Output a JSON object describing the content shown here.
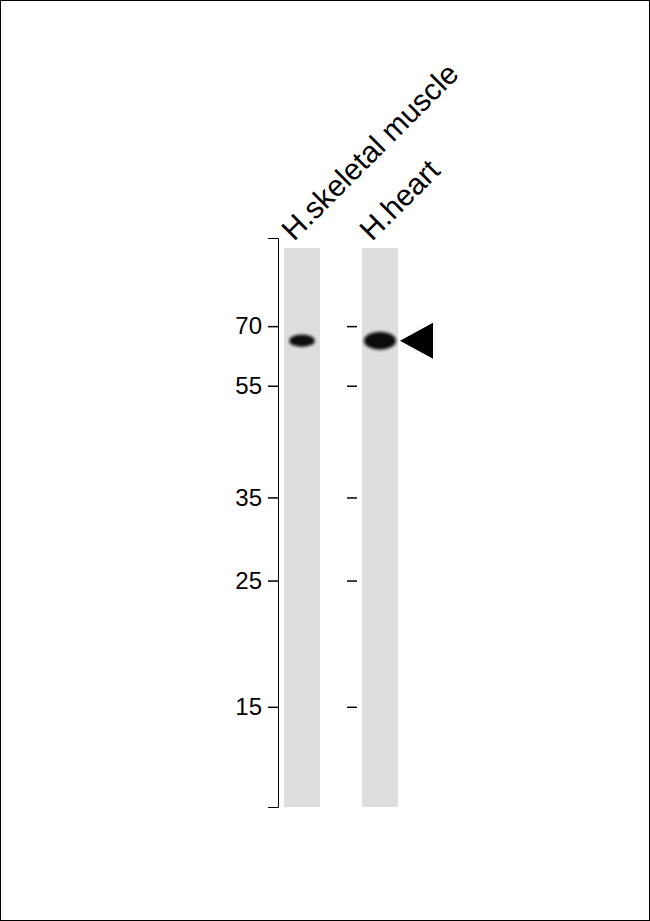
{
  "chart_data": {
    "type": "blot",
    "categories": [
      "H.skeletal muscle",
      "H.heart"
    ],
    "values": [
      66,
      66
    ],
    "band_intensity": [
      0.6,
      1.0
    ],
    "ylim": [
      10,
      100
    ],
    "yticks": [
      70,
      55,
      35,
      25,
      15
    ],
    "log": "y",
    "color": "#111111"
  }
}
